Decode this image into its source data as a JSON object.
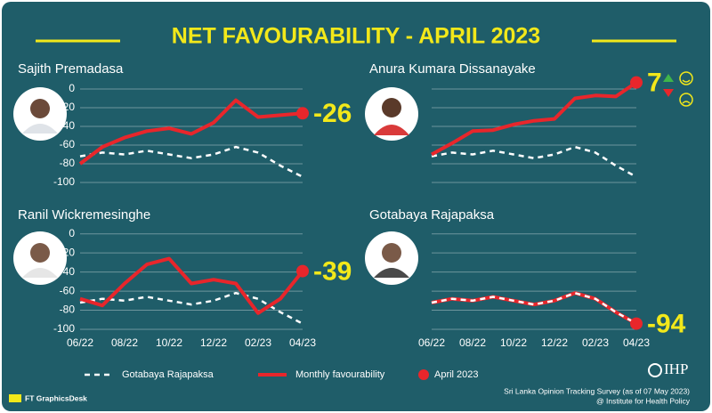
{
  "header": {
    "title": "NET FAVOURABILITY - APRIL 2023"
  },
  "chart_data": [
    {
      "type": "line",
      "name": "Sajith Premadasa",
      "categories": [
        null,
        null,
        null,
        null,
        null,
        null,
        null,
        null,
        null,
        null,
        null
      ],
      "series": [
        {
          "color": "#ffffff",
          "dashed": true,
          "values": [
            -72,
            -68,
            -70,
            -66,
            -70,
            -74,
            -70,
            -62,
            -68,
            -82,
            -94
          ]
        },
        {
          "color": "#e8262b",
          "dashed": false,
          "highlight_last": true,
          "values": [
            -80,
            -62,
            -52,
            -45,
            -42,
            -48,
            -36,
            -12,
            -30,
            -28,
            -26
          ]
        }
      ],
      "value_label_color": "#f2e81a",
      "ylim": [
        -100,
        10
      ],
      "yticks": [
        0,
        -20,
        -40,
        -60,
        -80,
        -100
      ],
      "grid": true
    },
    {
      "type": "line",
      "name": "Anura Kumara Dissanayake",
      "categories": [
        null,
        null,
        null,
        null,
        null,
        null,
        null,
        null,
        null,
        null,
        null
      ],
      "series": [
        {
          "color": "#ffffff",
          "dashed": true,
          "values": [
            -72,
            -68,
            -70,
            -66,
            -70,
            -74,
            -70,
            -62,
            -68,
            -82,
            -94
          ]
        },
        {
          "color": "#e8262b",
          "dashed": false,
          "highlight_last": true,
          "values": [
            -70,
            -58,
            -45,
            -44,
            -38,
            -34,
            -32,
            -10,
            -7,
            -8,
            7
          ]
        }
      ],
      "value_label_color": "#f2e81a",
      "ylim": [
        -100,
        10
      ],
      "yticks": [
        0,
        -20,
        -40,
        -60,
        -80,
        -100
      ],
      "grid": true
    },
    {
      "type": "line",
      "name": "Ranil Wickremesinghe",
      "categories": [
        "06/22",
        null,
        "08/22",
        null,
        "10/22",
        null,
        "12/22",
        null,
        "02/23",
        null,
        "04/23"
      ],
      "series": [
        {
          "color": "#ffffff",
          "dashed": true,
          "values": [
            -72,
            -68,
            -70,
            -66,
            -70,
            -74,
            -70,
            -62,
            -68,
            -82,
            -94
          ]
        },
        {
          "color": "#e8262b",
          "dashed": false,
          "highlight_last": true,
          "values": [
            -68,
            -75,
            -52,
            -32,
            -26,
            -52,
            -48,
            -52,
            -83,
            -68,
            -39
          ]
        }
      ],
      "value_label_color": "#f2e81a",
      "ylim": [
        -100,
        10
      ],
      "yticks": [
        0,
        -20,
        -40,
        -60,
        -80,
        -100
      ],
      "grid": true
    },
    {
      "type": "line",
      "name": "Gotabaya Rajapaksa",
      "categories": [
        "06/22",
        null,
        "08/22",
        null,
        "10/22",
        null,
        "12/22",
        null,
        "02/23",
        null,
        "04/23"
      ],
      "series": [
        {
          "color": "#e8262b",
          "dashed": false,
          "highlight_last": true,
          "values": [
            -72,
            -68,
            -70,
            -66,
            -70,
            -74,
            -70,
            -62,
            -68,
            -82,
            -94
          ]
        },
        {
          "color": "#ffffff",
          "dashed": true,
          "values": [
            -72,
            -68,
            -70,
            -66,
            -70,
            -74,
            -70,
            -62,
            -68,
            -82,
            -94
          ]
        }
      ],
      "value_label_color": "#f2e81a",
      "ylim": [
        -100,
        10
      ],
      "yticks": [
        0,
        -20,
        -40,
        -60,
        -80,
        -100
      ],
      "grid": true
    }
  ],
  "legend": [
    {
      "name": "Gotabaya Rajapaksa",
      "style": "dashed",
      "color": "#ffffff"
    },
    {
      "name": "Monthly favourability",
      "style": "line",
      "color": "#e8262b"
    },
    {
      "name": "April 2023",
      "style": "dot",
      "color": "#e8262b"
    }
  ],
  "footer": {
    "logo": "IHP",
    "source": "Sri Lanka Opinion Tracking Survey (as of 07 May 2023)",
    "credit": "@ Institute for Health Policy",
    "desk": "FT GraphicsDesk"
  }
}
